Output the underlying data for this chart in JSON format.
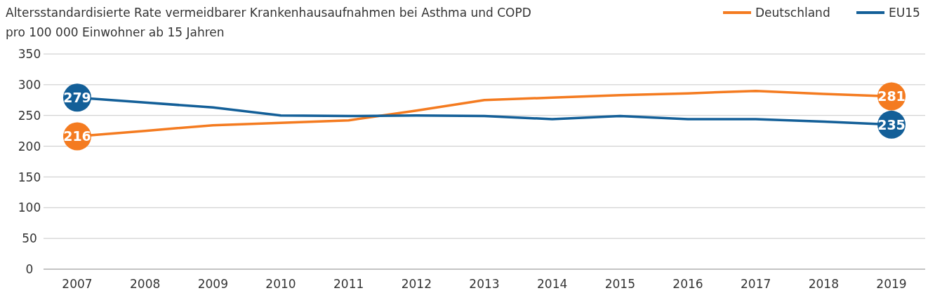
{
  "chart_data": {
    "type": "line",
    "title": "Altersstandardisierte Rate vermeidbarer Krankenhausaufnahmen bei Asthma und COPD",
    "subtitle": "pro 100 000 Einwohner ab 15 Jahren",
    "categories": [
      "2007",
      "2008",
      "2009",
      "2010",
      "2011",
      "2012",
      "2013",
      "2014",
      "2015",
      "2016",
      "2017",
      "2018",
      "2019"
    ],
    "series": [
      {
        "name": "Deutschland",
        "color": "#f47b20",
        "values": [
          216,
          225,
          234,
          238,
          242,
          258,
          275,
          279,
          283,
          286,
          290,
          285,
          281
        ],
        "value_labels": [
          "216",
          null,
          null,
          null,
          null,
          null,
          null,
          null,
          null,
          null,
          null,
          null,
          "281"
        ]
      },
      {
        "name": "EU15",
        "color": "#135f98",
        "values": [
          279,
          271,
          263,
          250,
          249,
          250,
          249,
          244,
          249,
          244,
          244,
          240,
          235
        ],
        "value_labels": [
          "279",
          null,
          null,
          null,
          null,
          null,
          null,
          null,
          null,
          null,
          null,
          null,
          "235"
        ]
      }
    ],
    "ylim": [
      0,
      350
    ],
    "yticks": [
      0,
      50,
      100,
      150,
      200,
      250,
      300,
      350
    ],
    "grid": "y",
    "legend": "top right"
  }
}
